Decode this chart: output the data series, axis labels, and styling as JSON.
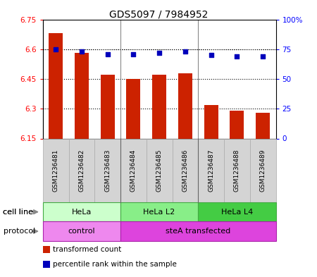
{
  "title": "GDS5097 / 7984952",
  "samples": [
    "GSM1236481",
    "GSM1236482",
    "GSM1236483",
    "GSM1236484",
    "GSM1236485",
    "GSM1236486",
    "GSM1236487",
    "GSM1236488",
    "GSM1236489"
  ],
  "transformed_counts": [
    6.68,
    6.58,
    6.47,
    6.45,
    6.47,
    6.48,
    6.32,
    6.29,
    6.28
  ],
  "percentile_ranks": [
    75,
    73,
    71,
    71,
    72,
    73,
    70,
    69,
    69
  ],
  "ylim_left": [
    6.15,
    6.75
  ],
  "ylim_right": [
    0,
    100
  ],
  "yticks_left": [
    6.15,
    6.3,
    6.45,
    6.6,
    6.75
  ],
  "yticks_left_labels": [
    "6.15",
    "6.3",
    "6.45",
    "6.6",
    "6.75"
  ],
  "yticks_right": [
    0,
    25,
    50,
    75,
    100
  ],
  "yticks_right_labels": [
    "0",
    "25",
    "50",
    "75",
    "100%"
  ],
  "bar_color": "#cc2200",
  "dot_color": "#0000bb",
  "cell_line_groups": [
    {
      "label": "HeLa",
      "start": 0,
      "end": 3,
      "color": "#ccffcc"
    },
    {
      "label": "HeLa L2",
      "start": 3,
      "end": 6,
      "color": "#88ee88"
    },
    {
      "label": "HeLa L4",
      "start": 6,
      "end": 9,
      "color": "#44cc44"
    }
  ],
  "protocol_groups": [
    {
      "label": "control",
      "start": 0,
      "end": 3,
      "color": "#ee88ee"
    },
    {
      "label": "steA transfected",
      "start": 3,
      "end": 9,
      "color": "#dd44dd"
    }
  ],
  "cell_line_label": "cell line",
  "protocol_label": "protocol",
  "legend_items": [
    {
      "color": "#cc2200",
      "label": "transformed count"
    },
    {
      "color": "#0000bb",
      "label": "percentile rank within the sample"
    }
  ],
  "sample_box_color": "#d4d4d4",
  "sample_box_edge": "#aaaaaa"
}
